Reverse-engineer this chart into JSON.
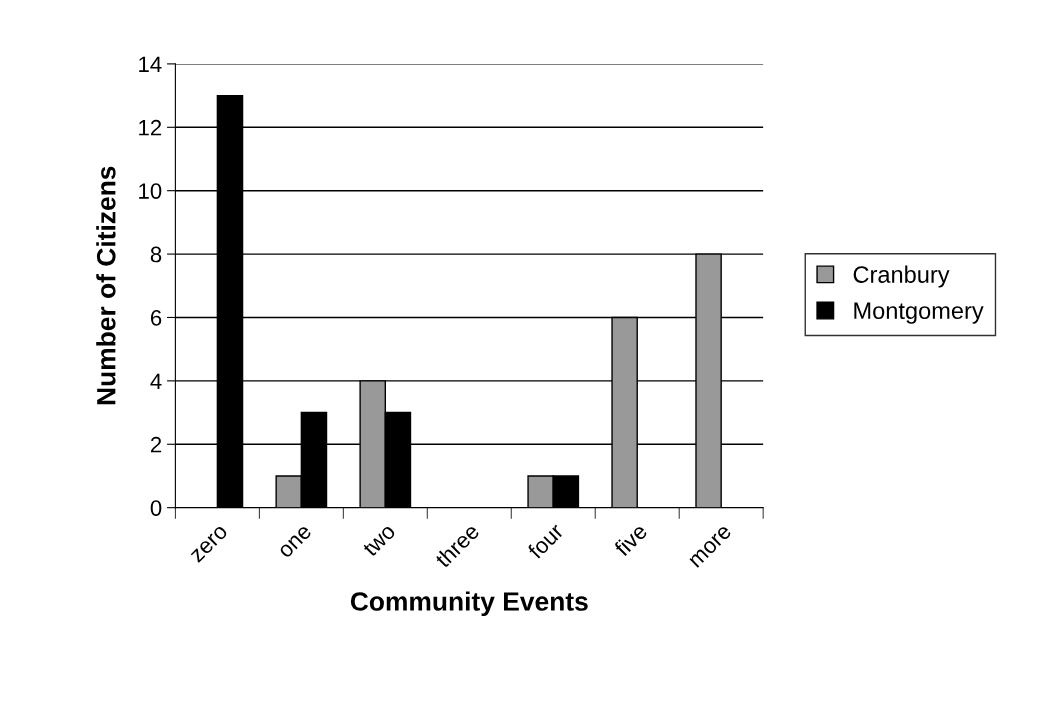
{
  "chart_data": {
    "type": "bar",
    "xlabel": "Community Events",
    "ylabel": "Number of Citizens",
    "categories": [
      "zero",
      "one",
      "two",
      "three",
      "four",
      "five",
      "more"
    ],
    "series": [
      {
        "name": "Cranbury",
        "color": "#999999",
        "values": [
          0,
          1,
          4,
          0,
          1,
          6,
          8
        ]
      },
      {
        "name": "Montgomery",
        "color": "#000000",
        "values": [
          13,
          3,
          3,
          0,
          1,
          0,
          0
        ]
      }
    ],
    "ylim": [
      0,
      14
    ],
    "yticks": [
      0,
      2,
      4,
      6,
      8,
      10,
      12,
      14
    ],
    "grid": "y",
    "legend": "right"
  }
}
